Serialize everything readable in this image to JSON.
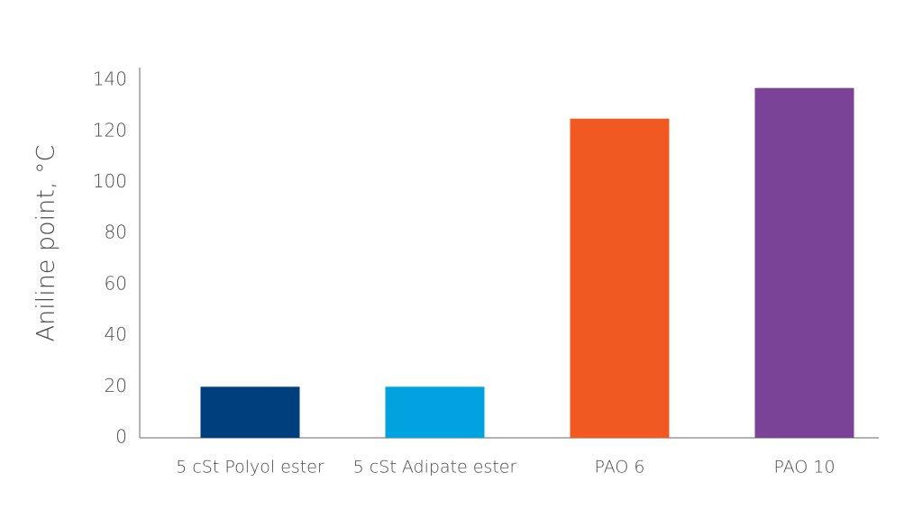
{
  "chart_data": {
    "type": "bar",
    "y_label": "Aniline point, °C",
    "categories": [
      "5 cSt Polyol ester",
      "5 cSt Adipate ester",
      "PAO 6",
      "PAO 10"
    ],
    "values": [
      20,
      20,
      125,
      137
    ],
    "colors": [
      "#003f7d",
      "#00a3e0",
      "#f05a22",
      "#7b4397"
    ],
    "ylim": [
      0,
      145
    ],
    "yticks": [
      0,
      20,
      40,
      60,
      80,
      100,
      120,
      140
    ],
    "grid": false
  }
}
